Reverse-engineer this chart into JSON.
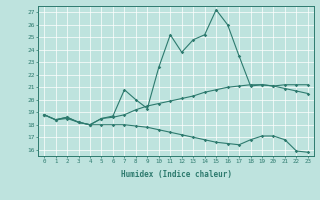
{
  "xlabel": "Humidex (Indice chaleur)",
  "ylabel": "",
  "xlim": [
    -0.5,
    23.5
  ],
  "ylim": [
    15.5,
    27.5
  ],
  "yticks": [
    16,
    17,
    18,
    19,
    20,
    21,
    22,
    23,
    24,
    25,
    26,
    27
  ],
  "xticks": [
    0,
    1,
    2,
    3,
    4,
    5,
    6,
    7,
    8,
    9,
    10,
    11,
    12,
    13,
    14,
    15,
    16,
    17,
    18,
    19,
    20,
    21,
    22,
    23
  ],
  "line_color": "#2D7A6E",
  "bg_color": "#BEE3DE",
  "line1_x": [
    0,
    1,
    2,
    3,
    4,
    5,
    6,
    7,
    8,
    9,
    10,
    11,
    12,
    13,
    14,
    15,
    16,
    17,
    18,
    19,
    20,
    21,
    22,
    23
  ],
  "line1_y": [
    18.8,
    18.4,
    18.6,
    18.2,
    18.0,
    18.5,
    18.7,
    20.8,
    20.0,
    19.3,
    22.6,
    25.2,
    23.8,
    24.8,
    25.2,
    27.2,
    26.0,
    23.5,
    21.1,
    21.2,
    21.1,
    21.2,
    21.2,
    21.2
  ],
  "line2_x": [
    0,
    1,
    2,
    3,
    4,
    5,
    6,
    7,
    8,
    9,
    10,
    11,
    12,
    13,
    14,
    15,
    16,
    17,
    18,
    19,
    20,
    21,
    22,
    23
  ],
  "line2_y": [
    18.8,
    18.4,
    18.6,
    18.2,
    18.0,
    18.5,
    18.6,
    18.8,
    19.2,
    19.5,
    19.7,
    19.9,
    20.1,
    20.3,
    20.6,
    20.8,
    21.0,
    21.1,
    21.2,
    21.2,
    21.1,
    20.9,
    20.7,
    20.5
  ],
  "line3_x": [
    0,
    1,
    2,
    3,
    4,
    5,
    6,
    7,
    8,
    9,
    10,
    11,
    12,
    13,
    14,
    15,
    16,
    17,
    18,
    19,
    20,
    21,
    22,
    23
  ],
  "line3_y": [
    18.8,
    18.4,
    18.5,
    18.2,
    18.0,
    18.0,
    18.0,
    18.0,
    17.9,
    17.8,
    17.6,
    17.4,
    17.2,
    17.0,
    16.8,
    16.6,
    16.5,
    16.4,
    16.8,
    17.1,
    17.1,
    16.8,
    15.9,
    15.8
  ]
}
